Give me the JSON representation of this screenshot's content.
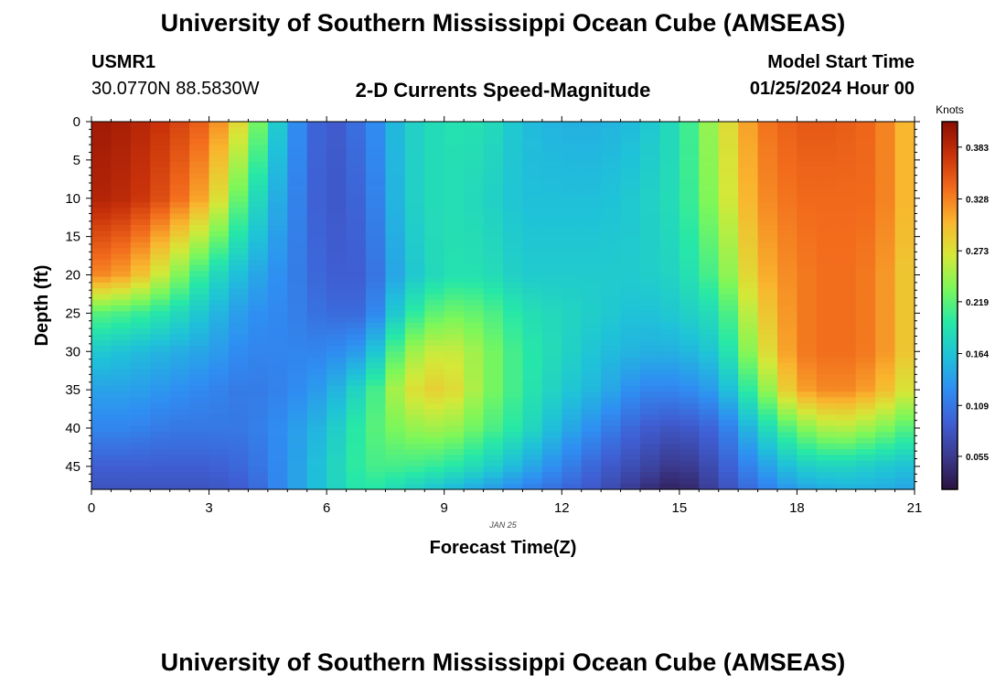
{
  "header": {
    "title": "University of Southern Mississippi Ocean Cube (AMSEAS)",
    "station": "USMR1",
    "coords": "30.0770N  88.5830W",
    "plot_title": "2-D Currents Speed-Magnitude",
    "start_label": "Model Start Time",
    "start_value": "01/25/2024 Hour 00"
  },
  "footer": {
    "title": "University of Southern Mississippi Ocean Cube (AMSEAS)"
  },
  "chart_data": {
    "type": "heatmap",
    "title": "2-D Currents Speed-Magnitude",
    "xlabel": "Forecast Time(Z)",
    "ylabel": "Depth (ft)",
    "x_sublabel": "JAN 25",
    "xlim": [
      0,
      21
    ],
    "ylim": [
      0,
      48
    ],
    "x_ticks": [
      0,
      3,
      6,
      9,
      12,
      15,
      18,
      21
    ],
    "y_ticks": [
      0,
      5,
      10,
      15,
      20,
      25,
      30,
      35,
      40,
      45
    ],
    "colorbar": {
      "unit": "Knots",
      "min": 0.02,
      "max": 0.41,
      "ticks": [
        0.055,
        0.109,
        0.164,
        0.219,
        0.273,
        0.328,
        0.383
      ],
      "colors": [
        "#2a1440",
        "#3b3a8f",
        "#3f5fd4",
        "#2f8ef2",
        "#1fc2d8",
        "#27e8a6",
        "#7cf75a",
        "#d4e838",
        "#f9b52e",
        "#f26b1c",
        "#c9320a",
        "#8a0e03"
      ]
    },
    "depth_samples_ft": [
      0,
      10,
      20,
      25,
      30,
      35,
      40,
      45,
      48
    ],
    "series": [
      {
        "hour": 0,
        "speeds": [
          0.4,
          0.39,
          0.33,
          0.22,
          0.17,
          0.14,
          0.12,
          0.09,
          0.08
        ]
      },
      {
        "hour": 1,
        "speeds": [
          0.39,
          0.38,
          0.31,
          0.21,
          0.16,
          0.14,
          0.12,
          0.09,
          0.08
        ]
      },
      {
        "hour": 2,
        "speeds": [
          0.37,
          0.35,
          0.25,
          0.19,
          0.15,
          0.13,
          0.11,
          0.09,
          0.08
        ]
      },
      {
        "hour": 3,
        "speeds": [
          0.34,
          0.3,
          0.19,
          0.16,
          0.14,
          0.12,
          0.11,
          0.09,
          0.08
        ]
      },
      {
        "hour": 4,
        "speeds": [
          0.26,
          0.2,
          0.15,
          0.13,
          0.12,
          0.11,
          0.11,
          0.1,
          0.09
        ]
      },
      {
        "hour": 5,
        "speeds": [
          0.14,
          0.13,
          0.12,
          0.12,
          0.12,
          0.12,
          0.13,
          0.13,
          0.13
        ]
      },
      {
        "hour": 6,
        "speeds": [
          0.08,
          0.08,
          0.09,
          0.1,
          0.12,
          0.14,
          0.16,
          0.17,
          0.17
        ]
      },
      {
        "hour": 7,
        "speeds": [
          0.11,
          0.1,
          0.09,
          0.1,
          0.14,
          0.19,
          0.21,
          0.21,
          0.2
        ]
      },
      {
        "hour": 8,
        "speeds": [
          0.17,
          0.17,
          0.16,
          0.19,
          0.24,
          0.27,
          0.24,
          0.21,
          0.18
        ]
      },
      {
        "hour": 9,
        "speeds": [
          0.19,
          0.19,
          0.19,
          0.23,
          0.27,
          0.29,
          0.25,
          0.2,
          0.16
        ]
      },
      {
        "hour": 10,
        "speeds": [
          0.19,
          0.18,
          0.19,
          0.22,
          0.24,
          0.24,
          0.22,
          0.18,
          0.14
        ]
      },
      {
        "hour": 11,
        "speeds": [
          0.16,
          0.16,
          0.17,
          0.19,
          0.2,
          0.2,
          0.19,
          0.15,
          0.12
        ]
      },
      {
        "hour": 12,
        "speeds": [
          0.15,
          0.16,
          0.17,
          0.18,
          0.18,
          0.17,
          0.15,
          0.12,
          0.1
        ]
      },
      {
        "hour": 13,
        "speeds": [
          0.15,
          0.16,
          0.17,
          0.17,
          0.16,
          0.15,
          0.12,
          0.09,
          0.08
        ]
      },
      {
        "hour": 14,
        "speeds": [
          0.16,
          0.17,
          0.17,
          0.16,
          0.15,
          0.12,
          0.09,
          0.07,
          0.05
        ]
      },
      {
        "hour": 15,
        "speeds": [
          0.19,
          0.19,
          0.18,
          0.17,
          0.15,
          0.12,
          0.08,
          0.05,
          0.03
        ]
      },
      {
        "hour": 16,
        "speeds": [
          0.26,
          0.25,
          0.22,
          0.19,
          0.17,
          0.14,
          0.1,
          0.08,
          0.07
        ]
      },
      {
        "hour": 17,
        "speeds": [
          0.33,
          0.32,
          0.3,
          0.28,
          0.26,
          0.22,
          0.17,
          0.13,
          0.11
        ]
      },
      {
        "hour": 18,
        "speeds": [
          0.35,
          0.34,
          0.33,
          0.33,
          0.33,
          0.31,
          0.23,
          0.17,
          0.14
        ]
      },
      {
        "hour": 19,
        "speeds": [
          0.35,
          0.34,
          0.34,
          0.34,
          0.34,
          0.33,
          0.26,
          0.18,
          0.15
        ]
      },
      {
        "hour": 20,
        "speeds": [
          0.34,
          0.34,
          0.33,
          0.33,
          0.33,
          0.31,
          0.24,
          0.17,
          0.15
        ]
      },
      {
        "hour": 21,
        "speeds": [
          0.29,
          0.29,
          0.28,
          0.28,
          0.28,
          0.26,
          0.21,
          0.16,
          0.14
        ]
      }
    ]
  }
}
